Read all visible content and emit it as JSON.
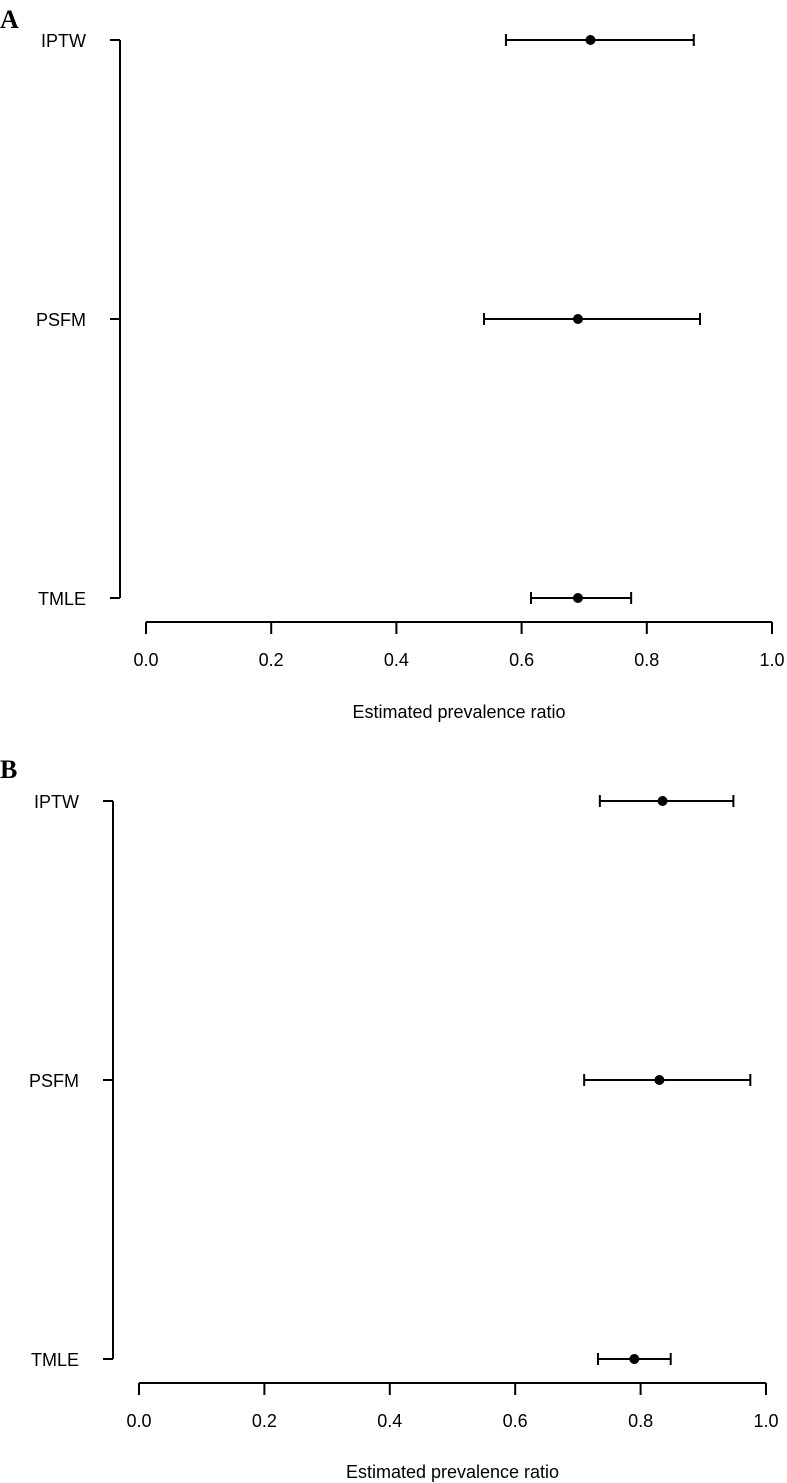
{
  "chart_data": [
    {
      "type": "scatter",
      "panel_label": "A",
      "categories": [
        "IPTW",
        "PSFM",
        "TMLE"
      ],
      "estimates": [
        0.71,
        0.69,
        0.69
      ],
      "ci_lower": [
        0.575,
        0.54,
        0.615
      ],
      "ci_upper": [
        0.875,
        0.885,
        0.775
      ],
      "xlabel": "Estimated prevalence ratio",
      "xlim": [
        0.0,
        1.0
      ],
      "xticks": [
        "0.0",
        "0.2",
        "0.4",
        "0.6",
        "0.8",
        "1.0"
      ],
      "grid": false
    },
    {
      "type": "scatter",
      "panel_label": "B",
      "categories": [
        "IPTW",
        "PSFM",
        "TMLE"
      ],
      "estimates": [
        0.835,
        0.83,
        0.79
      ],
      "ci_lower": [
        0.735,
        0.71,
        0.732
      ],
      "ci_upper": [
        0.948,
        0.975,
        0.848
      ],
      "xlabel": "Estimated prevalence ratio",
      "xlim": [
        0.0,
        1.0
      ],
      "xticks": [
        "0.0",
        "0.2",
        "0.4",
        "0.6",
        "0.8",
        "1.0"
      ],
      "grid": false
    }
  ]
}
